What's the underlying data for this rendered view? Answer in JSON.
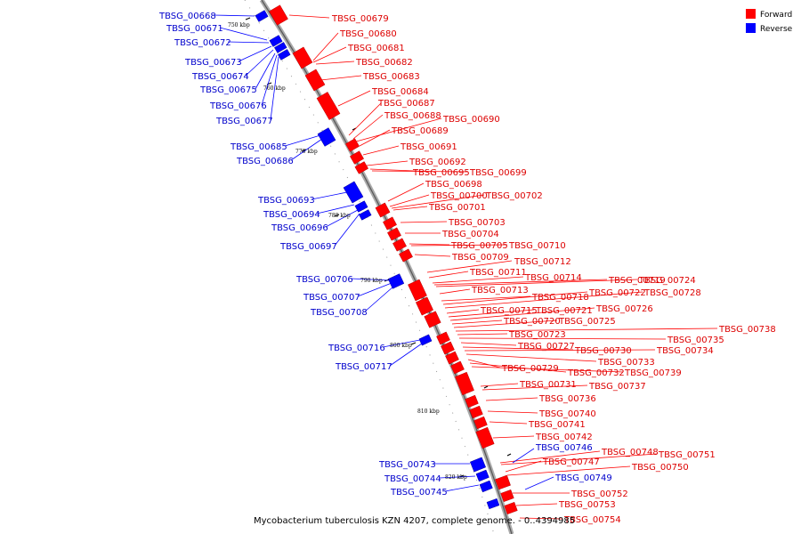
{
  "legend": [
    {
      "label": "Forward",
      "color": "#ff0000"
    },
    {
      "label": "Reverse",
      "color": "#0000ff"
    }
  ],
  "footer": "Mycobacterium tuberculosis KZN 4207, complete genome. - 0..4394985",
  "ticks": [
    "750 kbp",
    "760 kbp",
    "770 kbp",
    "780 kbp",
    "790 kbp",
    "800 kbp",
    "810 kbp",
    "820 kbp"
  ],
  "labels": {
    "forward": [
      "TBSG_00679",
      "TBSG_00680",
      "TBSG_00681",
      "TBSG_00682",
      "TBSG_00683",
      "TBSG_00684",
      "TBSG_00687",
      "TBSG_00688",
      "TBSG_00690",
      "TBSG_00689",
      "TBSG_00691",
      "TBSG_00692",
      "TBSG_00695",
      "TBSG_00699",
      "TBSG_00698",
      "TBSG_00700",
      "TBSG_00702",
      "TBSG_00701",
      "TBSG_00703",
      "TBSG_00704",
      "TBSG_00705",
      "TBSG_00710",
      "TBSG_00709",
      "TBSG_00712",
      "TBSG_00711",
      "TBSG_00714",
      "TBSG_00719",
      "TBSG_00724",
      "TBSG_00713",
      "TBSG_00718",
      "TBSG_00722",
      "TBSG_00728",
      "TBSG_00715",
      "TBSG_00721",
      "TBSG_00726",
      "TBSG_00720",
      "TBSG_00725",
      "TBSG_00738",
      "TBSG_00723",
      "TBSG_00735",
      "TBSG_00727",
      "TBSG_00730",
      "TBSG_00734",
      "TBSG_00733",
      "TBSG_00729",
      "TBSG_00732",
      "TBSG_00739",
      "TBSG_00731",
      "TBSG_00737",
      "TBSG_00736",
      "TBSG_00740",
      "TBSG_00741",
      "TBSG_00742",
      "TBSG_00748",
      "TBSG_00751",
      "TBSG_00747",
      "TBSG_00750",
      "TBSG_00752",
      "TBSG_00753",
      "TBSG_00754"
    ],
    "reverse": [
      "TBSG_00668",
      "TBSG_00671",
      "TBSG_00672",
      "TBSG_00673",
      "TBSG_00674",
      "TBSG_00675",
      "TBSG_00676",
      "TBSG_00677",
      "TBSG_00685",
      "TBSG_00686",
      "TBSG_00693",
      "TBSG_00694",
      "TBSG_00696",
      "TBSG_00697",
      "TBSG_00706",
      "TBSG_00707",
      "TBSG_00708",
      "TBSG_00716",
      "TBSG_00717",
      "TBSG_00743",
      "TBSG_00744",
      "TBSG_00745",
      "TBSG_00746",
      "TBSG_00749"
    ]
  }
}
